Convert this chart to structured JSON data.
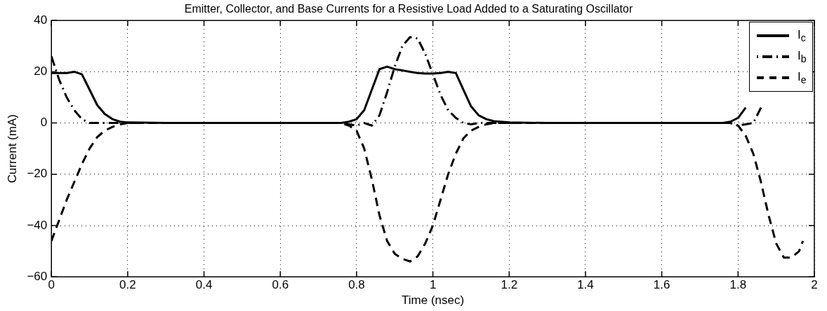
{
  "chart_data": {
    "type": "line",
    "title": "Emitter, Collector, and Base Currents for a Resistive Load Added to a Saturating Oscillator",
    "xlabel": "Time (nsec)",
    "ylabel": "Current (mA)",
    "xlim": [
      0,
      2
    ],
    "xticks": [
      0,
      0.2,
      0.4,
      0.6,
      0.8,
      1,
      1.2,
      1.4,
      1.6,
      1.8,
      2
    ],
    "ylim": [
      -60,
      40
    ],
    "yticks": [
      -60,
      -40,
      -20,
      0,
      20,
      40
    ],
    "grid": true,
    "legend": "top right",
    "marker": "none",
    "series": [
      {
        "name": "I$_{c}$",
        "color": "#000000",
        "line_style": "solid",
        "x": [
          0,
          0.02,
          0.04,
          0.06,
          0.08,
          0.1,
          0.12,
          0.14,
          0.16,
          0.18,
          0.2,
          0.3,
          0.5,
          0.76,
          0.78,
          0.8,
          0.82,
          0.84,
          0.86,
          0.88,
          0.9,
          0.92,
          0.94,
          0.96,
          0.98,
          1.0,
          1.02,
          1.04,
          1.06,
          1.08,
          1.1,
          1.12,
          1.14,
          1.16,
          1.2,
          1.3,
          1.5,
          1.76,
          1.78,
          1.8,
          1.82
        ],
        "values": [
          19.5,
          19.5,
          19.5,
          20,
          19,
          13,
          7,
          3.5,
          1.5,
          0.5,
          0.2,
          0,
          0,
          0,
          0.5,
          1.5,
          5,
          13,
          21,
          22,
          21,
          20.5,
          20,
          19.5,
          19.3,
          19.3,
          19.5,
          20,
          19.5,
          13,
          6.5,
          3,
          1.5,
          0.7,
          0.2,
          0,
          0,
          0,
          0.5,
          2,
          6
        ]
      },
      {
        "name": "I$_{b}$",
        "color": "#000000",
        "line_style": "dashdot",
        "x": [
          0,
          0.02,
          0.04,
          0.06,
          0.08,
          0.1,
          0.12,
          0.3,
          0.5,
          0.76,
          0.78,
          0.8,
          0.82,
          0.84,
          0.86,
          0.88,
          0.9,
          0.92,
          0.94,
          0.96,
          0.98,
          1.0,
          1.02,
          1.04,
          1.06,
          1.08,
          1.1,
          1.12,
          1.3,
          1.5,
          1.78,
          1.8,
          1.82,
          1.84,
          1.86
        ],
        "values": [
          26,
          17,
          10,
          5,
          1.5,
          0,
          0,
          0,
          0,
          0,
          -0.5,
          -1,
          0,
          -1,
          3,
          12,
          22,
          30,
          33.5,
          33,
          27,
          19,
          11,
          5,
          2,
          0,
          -0.5,
          0,
          0,
          0,
          0,
          -1,
          -0.5,
          0,
          6
        ]
      },
      {
        "name": "I$_{e}$",
        "color": "#000000",
        "line_style": "dashed",
        "x": [
          0,
          0.02,
          0.04,
          0.06,
          0.08,
          0.1,
          0.12,
          0.14,
          0.16,
          0.18,
          0.2,
          0.3,
          0.5,
          0.76,
          0.78,
          0.8,
          0.82,
          0.84,
          0.86,
          0.88,
          0.9,
          0.92,
          0.94,
          0.96,
          0.98,
          1.0,
          1.02,
          1.04,
          1.06,
          1.08,
          1.1,
          1.12,
          1.14,
          1.16,
          1.3,
          1.5,
          1.78,
          1.8,
          1.82,
          1.84,
          1.86,
          1.88,
          1.9,
          1.92,
          1.94,
          1.96,
          1.97
        ],
        "values": [
          -46,
          -38,
          -30,
          -23,
          -16,
          -10,
          -5.5,
          -3,
          -1.5,
          -0.5,
          0,
          0,
          0,
          0,
          -1,
          -3,
          -10,
          -22,
          -36,
          -46,
          -51,
          -53,
          -54,
          -52,
          -47,
          -40,
          -30,
          -20,
          -12,
          -6,
          -3,
          -1.5,
          -0.5,
          0,
          0,
          0,
          0,
          -1,
          -5,
          -12,
          -23,
          -36,
          -47,
          -52.5,
          -52.5,
          -50,
          -46
        ]
      }
    ]
  }
}
